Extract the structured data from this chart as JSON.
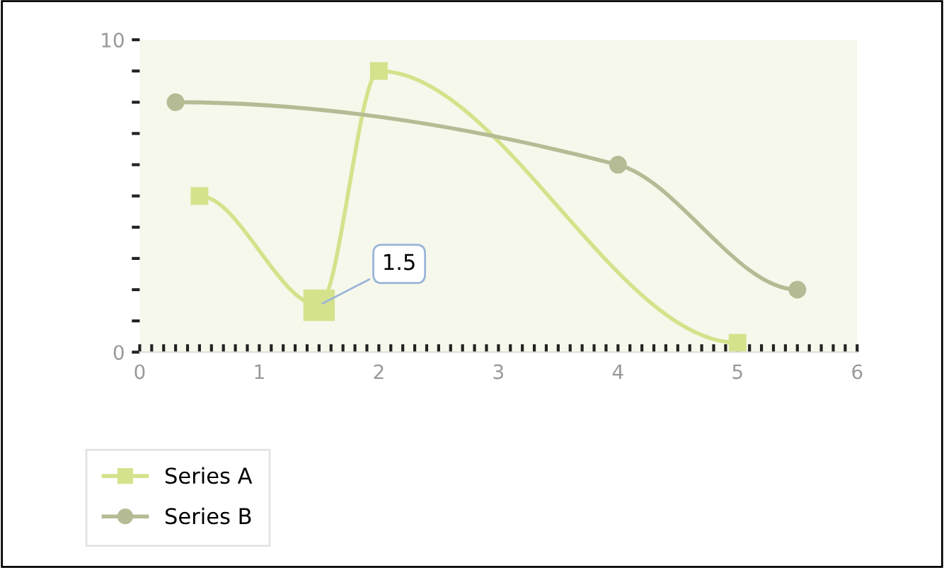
{
  "chart_data": {
    "type": "line",
    "series": [
      {
        "name": "Series A",
        "color": "#d5e28c",
        "marker": "square",
        "x": [
          0.5,
          1.5,
          2,
          5
        ],
        "values": [
          5,
          1.5,
          9,
          0.3
        ]
      },
      {
        "name": "Series B",
        "color": "#b5bb94",
        "marker": "circle",
        "x": [
          0.3,
          4,
          5.5
        ],
        "values": [
          8,
          6,
          2
        ]
      }
    ],
    "xlim": [
      0,
      6
    ],
    "xticks": [
      0,
      1,
      2,
      3,
      4,
      5,
      6
    ],
    "ylim": [
      0,
      10
    ],
    "yticks": [
      0,
      {
        "value": 1,
        "label": null
      },
      {
        "value": 2,
        "label": null
      },
      {
        "value": 3,
        "label": null
      },
      {
        "value": 4,
        "label": null
      },
      {
        "value": 5,
        "label": null
      },
      {
        "value": 6,
        "label": null
      },
      {
        "value": 7,
        "label": null
      },
      {
        "value": 8,
        "label": null
      },
      {
        "value": 9,
        "label": null
      },
      10
    ],
    "annotations": [
      {
        "text": "1.5",
        "x": 1.5,
        "y": 1.5
      }
    ],
    "grid": false,
    "legend": "bottom left",
    "line_style": "solid"
  }
}
